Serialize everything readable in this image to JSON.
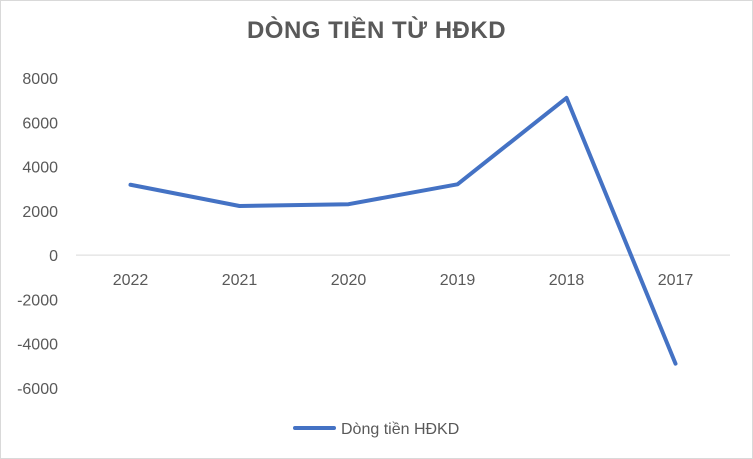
{
  "chart_data": {
    "type": "line",
    "title": "DÒNG TIỀN TỪ HĐKD",
    "categories": [
      "2022",
      "2021",
      "2020",
      "2019",
      "2018",
      "2017"
    ],
    "series": [
      {
        "name": "Dòng tiền HĐKD",
        "values": [
          3180,
          2220,
          2300,
          3200,
          7100,
          -4900
        ],
        "color": "#4472c4"
      }
    ],
    "ylim": [
      -6000,
      8000
    ],
    "yticks": [
      8000,
      6000,
      4000,
      2000,
      0,
      -2000,
      -4000,
      -6000
    ],
    "grid": false,
    "legend": "bottom"
  }
}
